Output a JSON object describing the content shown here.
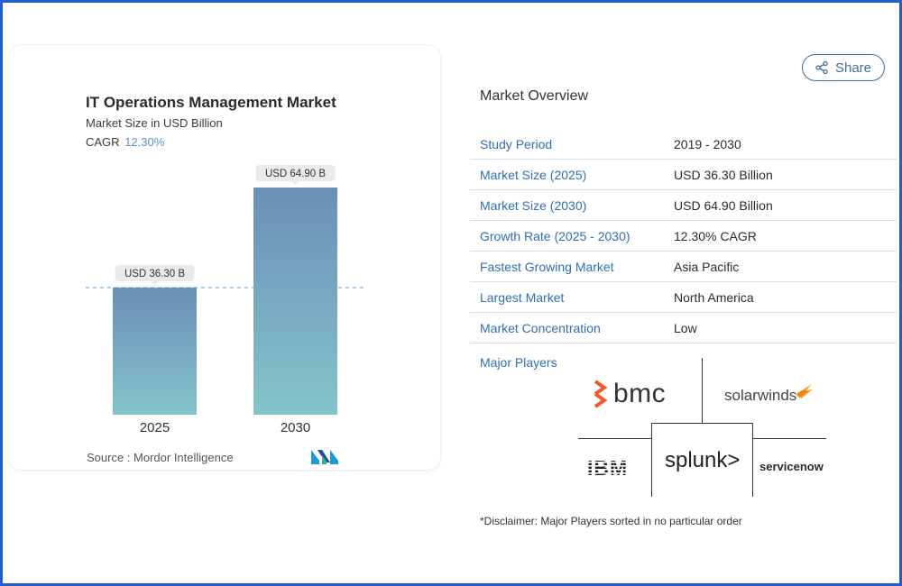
{
  "chart_data": {
    "type": "bar",
    "title": "IT Operations Management Market",
    "subtitle": "Market Size in USD Billion",
    "cagr_label": "CAGR",
    "cagr_value": "12.30%",
    "categories": [
      "2025",
      "2030"
    ],
    "values": [
      36.3,
      64.9
    ],
    "data_labels": [
      "USD 36.30 B",
      "USD 64.90 B"
    ],
    "ylim": [
      0,
      70
    ],
    "source": "Source :  Mordor Intelligence",
    "colors": {
      "bar_top": "#6a8fb8",
      "bar_bottom": "#84c4c9",
      "dash": "#5b9bc9"
    }
  },
  "share": {
    "label": "Share"
  },
  "overview": {
    "title": "Market Overview",
    "rows": [
      {
        "key": "Study Period",
        "value": "2019 - 2030"
      },
      {
        "key": "Market Size (2025)",
        "value": "USD 36.30 Billion"
      },
      {
        "key": "Market Size (2030)",
        "value": "USD 64.90 Billion"
      },
      {
        "key": "Growth Rate (2025 - 2030)",
        "value": "12.30% CAGR"
      },
      {
        "key": "Fastest Growing Market",
        "value": "Asia Pacific"
      },
      {
        "key": "Largest Market",
        "value": "North America"
      },
      {
        "key": "Market Concentration",
        "value": "Low"
      }
    ],
    "players_label": "Major Players",
    "players": {
      "bmc": "bmc",
      "solarwinds": "solarwinds",
      "ibm": "IBM",
      "splunk": "splunk>",
      "servicenow": "servicenow"
    },
    "disclaimer": "*Disclaimer: Major Players sorted in no particular order"
  }
}
